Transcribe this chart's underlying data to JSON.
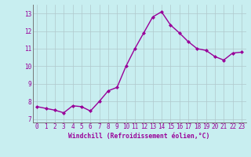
{
  "x": [
    0,
    1,
    2,
    3,
    4,
    5,
    6,
    7,
    8,
    9,
    10,
    11,
    12,
    13,
    14,
    15,
    16,
    17,
    18,
    19,
    20,
    21,
    22,
    23
  ],
  "y": [
    7.7,
    7.6,
    7.5,
    7.35,
    7.75,
    7.7,
    7.45,
    8.0,
    8.6,
    8.8,
    10.0,
    11.0,
    11.9,
    12.8,
    13.1,
    12.35,
    11.9,
    11.4,
    11.0,
    10.9,
    10.55,
    10.35,
    10.75,
    10.8
  ],
  "line_color": "#990099",
  "marker": "D",
  "marker_size": 2.0,
  "bg_color": "#c8eef0",
  "grid_color": "#b0c8cc",
  "xlabel": "Windchill (Refroidissement éolien,°C)",
  "xlabel_color": "#990099",
  "tick_color": "#990099",
  "ylim": [
    6.8,
    13.5
  ],
  "xlim": [
    -0.5,
    23.5
  ],
  "yticks": [
    7,
    8,
    9,
    10,
    11,
    12,
    13
  ],
  "xticks": [
    0,
    1,
    2,
    3,
    4,
    5,
    6,
    7,
    8,
    9,
    10,
    11,
    12,
    13,
    14,
    15,
    16,
    17,
    18,
    19,
    20,
    21,
    22,
    23
  ],
  "line_width": 1.0,
  "tick_fontsize": 5.5,
  "xlabel_fontsize": 5.8
}
